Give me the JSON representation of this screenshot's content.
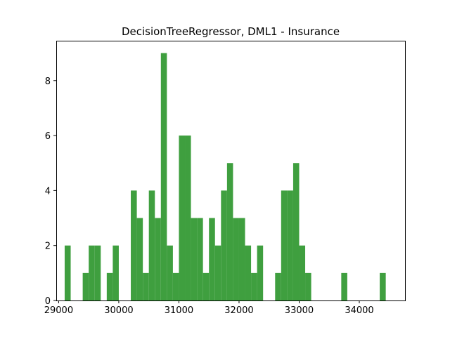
{
  "chart_data": {
    "type": "bar",
    "title": "DecisionTreeRegressor, DML1 - Insurance",
    "xlabel": "",
    "ylabel": "",
    "xlim": [
      28960,
      34760
    ],
    "ylim": [
      0,
      9.45
    ],
    "grid": false,
    "bar_color": "#3f9f3f",
    "bin_width": 100,
    "bins": [
      {
        "x": 29150,
        "count": 2
      },
      {
        "x": 29450,
        "count": 1
      },
      {
        "x": 29550,
        "count": 2
      },
      {
        "x": 29650,
        "count": 2
      },
      {
        "x": 29850,
        "count": 1
      },
      {
        "x": 29950,
        "count": 2
      },
      {
        "x": 30250,
        "count": 4
      },
      {
        "x": 30350,
        "count": 3
      },
      {
        "x": 30450,
        "count": 1
      },
      {
        "x": 30550,
        "count": 4
      },
      {
        "x": 30650,
        "count": 3
      },
      {
        "x": 30750,
        "count": 9
      },
      {
        "x": 30850,
        "count": 2
      },
      {
        "x": 30950,
        "count": 1
      },
      {
        "x": 31050,
        "count": 6
      },
      {
        "x": 31150,
        "count": 6
      },
      {
        "x": 31250,
        "count": 3
      },
      {
        "x": 31350,
        "count": 3
      },
      {
        "x": 31450,
        "count": 1
      },
      {
        "x": 31550,
        "count": 3
      },
      {
        "x": 31650,
        "count": 2
      },
      {
        "x": 31750,
        "count": 4
      },
      {
        "x": 31850,
        "count": 5
      },
      {
        "x": 31950,
        "count": 3
      },
      {
        "x": 32050,
        "count": 3
      },
      {
        "x": 32150,
        "count": 2
      },
      {
        "x": 32250,
        "count": 1
      },
      {
        "x": 32350,
        "count": 2
      },
      {
        "x": 32650,
        "count": 1
      },
      {
        "x": 32750,
        "count": 4
      },
      {
        "x": 32850,
        "count": 4
      },
      {
        "x": 32950,
        "count": 5
      },
      {
        "x": 33050,
        "count": 2
      },
      {
        "x": 33150,
        "count": 1
      },
      {
        "x": 33750,
        "count": 1
      },
      {
        "x": 34390,
        "count": 1
      }
    ],
    "x_ticks": [
      {
        "value": 29000,
        "label": "29000"
      },
      {
        "value": 30000,
        "label": "30000"
      },
      {
        "value": 31000,
        "label": "31000"
      },
      {
        "value": 32000,
        "label": "32000"
      },
      {
        "value": 33000,
        "label": "33000"
      },
      {
        "value": 34000,
        "label": "34000"
      }
    ],
    "y_ticks": [
      {
        "value": 0,
        "label": "0"
      },
      {
        "value": 2,
        "label": "2"
      },
      {
        "value": 4,
        "label": "4"
      },
      {
        "value": 6,
        "label": "6"
      },
      {
        "value": 8,
        "label": "8"
      }
    ]
  }
}
